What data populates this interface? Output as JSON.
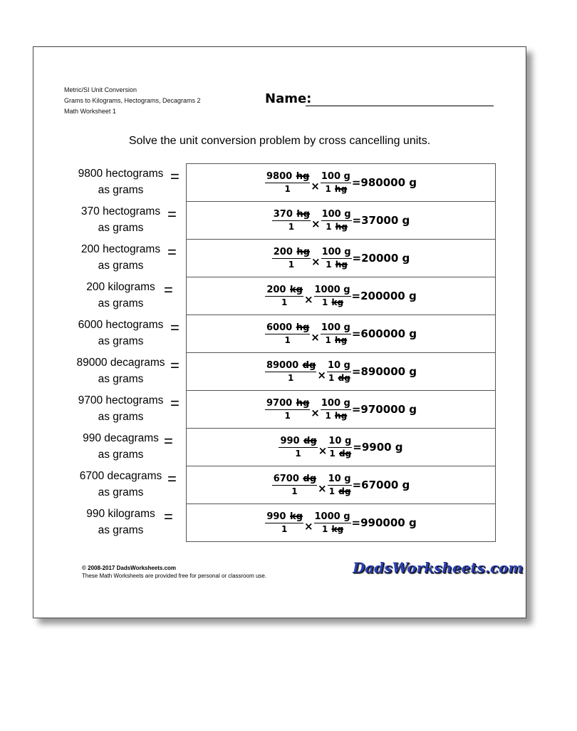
{
  "header": {
    "lines": [
      "Metric/SI Unit Conversion",
      "Grams to Kilograms, Hectograms, Decagrams 2",
      "Math Worksheet 1"
    ],
    "name_label": "Name:"
  },
  "instructions": "Solve the unit conversion problem by cross cancelling units.",
  "equals": "=",
  "times": "×",
  "problems": [
    {
      "q1": "9800 hectograms",
      "q2": "as grams",
      "n1": "9800",
      "u1": "hg",
      "d1": "1",
      "n2": "100 g",
      "d2n": "1",
      "u2": "hg",
      "result": "=980000 g"
    },
    {
      "q1": "370 hectograms",
      "q2": "as grams",
      "n1": "370",
      "u1": "hg",
      "d1": "1",
      "n2": "100 g",
      "d2n": "1",
      "u2": "hg",
      "result": "=37000 g"
    },
    {
      "q1": "200 hectograms",
      "q2": "as grams",
      "n1": "200",
      "u1": "hg",
      "d1": "1",
      "n2": "100 g",
      "d2n": "1",
      "u2": "hg",
      "result": "=20000 g"
    },
    {
      "q1": "200 kilograms",
      "q2": "as grams",
      "n1": "200",
      "u1": "kg",
      "d1": "1",
      "n2": "1000 g",
      "d2n": "1",
      "u2": "kg",
      "result": "=200000 g"
    },
    {
      "q1": "6000 hectograms",
      "q2": "as grams",
      "n1": "6000",
      "u1": "hg",
      "d1": "1",
      "n2": "100 g",
      "d2n": "1",
      "u2": "hg",
      "result": "=600000 g"
    },
    {
      "q1": "89000 decagrams",
      "q2": "as grams",
      "n1": "89000",
      "u1": "dg",
      "d1": "1",
      "n2": "10 g",
      "d2n": "1",
      "u2": "dg",
      "result": "=890000 g"
    },
    {
      "q1": "9700 hectograms",
      "q2": "as grams",
      "n1": "9700",
      "u1": "hg",
      "d1": "1",
      "n2": "100 g",
      "d2n": "1",
      "u2": "hg",
      "result": "=970000 g"
    },
    {
      "q1": "990 decagrams",
      "q2": "as grams",
      "n1": "990",
      "u1": "dg",
      "d1": "1",
      "n2": "10 g",
      "d2n": "1",
      "u2": "dg",
      "result": "=9900 g"
    },
    {
      "q1": "6700 decagrams",
      "q2": "as grams",
      "n1": "6700",
      "u1": "dg",
      "d1": "1",
      "n2": "10 g",
      "d2n": "1",
      "u2": "dg",
      "result": "=67000 g"
    },
    {
      "q1": "990 kilograms",
      "q2": "as grams",
      "n1": "990",
      "u1": "kg",
      "d1": "1",
      "n2": "1000 g",
      "d2n": "1",
      "u2": "kg",
      "result": "=990000 g"
    }
  ],
  "footer": {
    "copyright": "© 2008-2017 DadsWorksheets.com",
    "note": "These Math Worksheets are provided free for personal or classroom use.",
    "logo": "DadsWorksheets.com"
  }
}
